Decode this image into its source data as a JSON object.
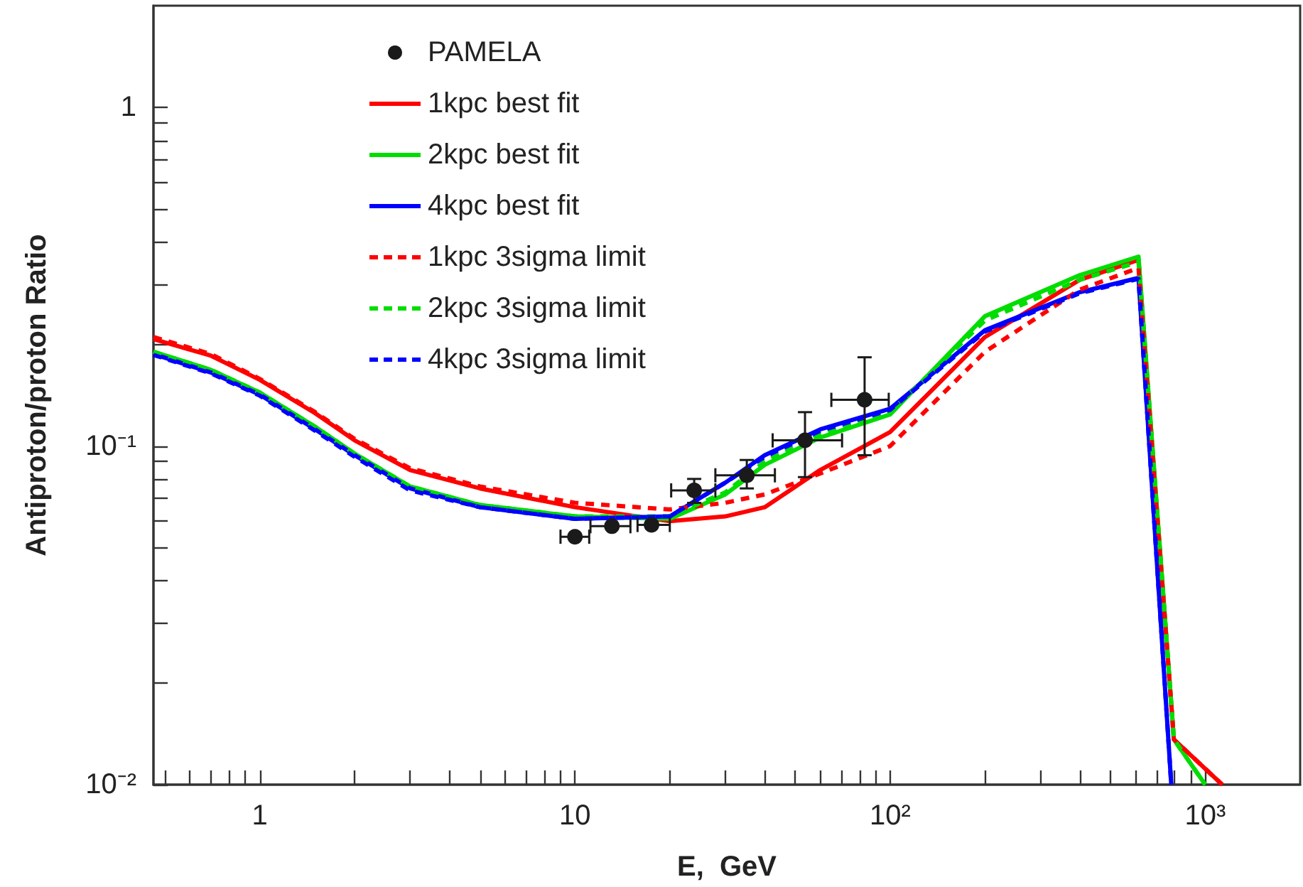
{
  "chart_data": {
    "type": "line",
    "xlabel": "E,  GeV",
    "ylabel": "Antiproton/proton Ratio",
    "log": "xy",
    "grid": false,
    "legend": "top left",
    "xlim": [
      0.46,
      2000
    ],
    "ylim": [
      0.01,
      2
    ],
    "xticks": [
      {
        "value": 0.5,
        "label": null
      },
      {
        "value": 0.6,
        "label": null
      },
      {
        "value": 0.7,
        "label": null
      },
      {
        "value": 0.8,
        "label": null
      },
      {
        "value": 0.9,
        "label": null
      },
      1,
      {
        "value": 2,
        "label": null
      },
      {
        "value": 3,
        "label": null
      },
      {
        "value": 4,
        "label": null
      },
      {
        "value": 5,
        "label": null
      },
      {
        "value": 6,
        "label": null
      },
      {
        "value": 7,
        "label": null
      },
      {
        "value": 8,
        "label": null
      },
      {
        "value": 9,
        "label": null
      },
      10,
      {
        "value": 20,
        "label": null
      },
      {
        "value": 30,
        "label": null
      },
      {
        "value": 40,
        "label": null
      },
      {
        "value": 50,
        "label": null
      },
      {
        "value": 60,
        "label": null
      },
      {
        "value": 70,
        "label": null
      },
      {
        "value": 80,
        "label": null
      },
      {
        "value": 90,
        "label": null
      },
      {
        "value": 100,
        "label": "10²"
      },
      {
        "value": 200,
        "label": null
      },
      {
        "value": 300,
        "label": null
      },
      {
        "value": 400,
        "label": null
      },
      {
        "value": 500,
        "label": null
      },
      {
        "value": 600,
        "label": null
      },
      {
        "value": 700,
        "label": null
      },
      {
        "value": 800,
        "label": null
      },
      {
        "value": 900,
        "label": null
      },
      {
        "value": 1000,
        "label": "10³"
      }
    ],
    "yticks": [
      {
        "value": 0.01,
        "label": "10⁻²"
      },
      {
        "value": 0.02,
        "label": null
      },
      {
        "value": 0.03,
        "label": null
      },
      {
        "value": 0.04,
        "label": null
      },
      {
        "value": 0.05,
        "label": null
      },
      {
        "value": 0.06,
        "label": null
      },
      {
        "value": 0.07,
        "label": null
      },
      {
        "value": 0.08,
        "label": null
      },
      {
        "value": 0.09,
        "label": null
      },
      {
        "value": 0.1,
        "label": "10⁻¹"
      },
      {
        "value": 0.2,
        "label": null
      },
      {
        "value": 0.3,
        "label": null
      },
      {
        "value": 0.4,
        "label": null
      },
      {
        "value": 0.5,
        "label": null
      },
      {
        "value": 0.6,
        "label": null
      },
      {
        "value": 0.7,
        "label": null
      },
      {
        "value": 0.8,
        "label": null
      },
      {
        "value": 0.9,
        "label": null
      },
      1
    ],
    "series": [
      {
        "name": "PAMELA",
        "type": "scatter",
        "marker": "circle",
        "color": "#1a1a1a",
        "x": [
          10,
          13.1,
          17.5,
          23.9,
          35.1,
          53.7,
          83
        ],
        "values": [
          0.054,
          0.058,
          0.0585,
          0.074,
          0.082,
          0.104,
          0.137
        ],
        "errors": [
          null,
          null,
          null,
          [
            0.068,
            0.08
          ],
          [
            0.075,
            0.091
          ],
          [
            0.081,
            0.126
          ],
          [
            0.094,
            0.183
          ]
        ],
        "xerrors": [
          [
            9,
            11.1
          ],
          [
            11.2,
            15
          ],
          [
            15.8,
            20
          ],
          [
            20.2,
            27.9
          ],
          [
            27.9,
            43.1
          ],
          [
            42.4,
            70.4
          ],
          [
            65.1,
            99
          ]
        ]
      },
      {
        "name": "1kpc best fit",
        "color": "#ff0000",
        "line_style": "solid",
        "x": [
          0.46,
          0.7,
          1,
          1.5,
          2,
          3,
          5,
          10,
          20,
          30,
          40,
          60,
          100,
          200,
          400,
          614,
          795,
          1132
        ],
        "values": [
          0.207,
          0.185,
          0.157,
          0.125,
          0.104,
          0.085,
          0.075,
          0.066,
          0.06,
          0.062,
          0.066,
          0.085,
          0.11,
          0.21,
          0.31,
          0.355,
          0.0136,
          0.01
        ]
      },
      {
        "name": "2kpc best fit",
        "color": "#00dd00",
        "line_style": "solid",
        "x": [
          0.46,
          0.7,
          1,
          1.5,
          2,
          3,
          5,
          10,
          20,
          30,
          40,
          60,
          100,
          200,
          400,
          614,
          795,
          1000
        ],
        "values": [
          0.19,
          0.168,
          0.144,
          0.114,
          0.095,
          0.076,
          0.067,
          0.062,
          0.061,
          0.072,
          0.088,
          0.106,
          0.124,
          0.242,
          0.32,
          0.363,
          0.0136,
          0.01
        ]
      },
      {
        "name": "4kpc best fit",
        "color": "#0000ff",
        "line_style": "solid",
        "x": [
          0.46,
          0.7,
          1,
          1.5,
          2,
          3,
          5,
          10,
          20,
          30,
          40,
          60,
          100,
          200,
          400,
          614,
          780
        ],
        "values": [
          0.187,
          0.165,
          0.142,
          0.112,
          0.094,
          0.075,
          0.066,
          0.061,
          0.062,
          0.078,
          0.094,
          0.112,
          0.129,
          0.22,
          0.285,
          0.314,
          0.01
        ]
      },
      {
        "name": "1kpc 3sigma limit",
        "color": "#ff0000",
        "line_style": "dashed",
        "x": [
          0.46,
          0.7,
          1,
          1.5,
          2,
          3,
          5,
          10,
          20,
          30,
          40,
          60,
          100,
          200,
          400,
          614,
          795,
          1132
        ],
        "values": [
          0.21,
          0.187,
          0.158,
          0.126,
          0.105,
          0.086,
          0.076,
          0.068,
          0.065,
          0.068,
          0.072,
          0.083,
          0.1,
          0.19,
          0.29,
          0.336,
          0.0136,
          0.01
        ]
      },
      {
        "name": "2kpc 3sigma limit",
        "color": "#00dd00",
        "line_style": "dashed",
        "x": [
          0.46,
          0.7,
          1,
          1.5,
          2,
          3,
          5,
          10,
          20,
          30,
          40,
          60,
          100,
          200,
          400,
          614,
          795,
          1000
        ],
        "values": [
          0.19,
          0.168,
          0.144,
          0.114,
          0.095,
          0.076,
          0.067,
          0.062,
          0.062,
          0.073,
          0.09,
          0.108,
          0.126,
          0.235,
          0.31,
          0.35,
          0.0136,
          0.01
        ]
      },
      {
        "name": "4kpc 3sigma limit",
        "color": "#0000ff",
        "line_style": "dashed",
        "x": [
          0.46,
          0.7,
          1,
          1.5,
          2,
          3,
          5,
          10,
          20,
          30,
          40,
          60,
          100,
          200,
          400,
          614,
          780
        ],
        "values": [
          0.186,
          0.164,
          0.141,
          0.111,
          0.093,
          0.074,
          0.066,
          0.061,
          0.062,
          0.078,
          0.093,
          0.111,
          0.128,
          0.218,
          0.283,
          0.312,
          0.01
        ]
      }
    ]
  }
}
